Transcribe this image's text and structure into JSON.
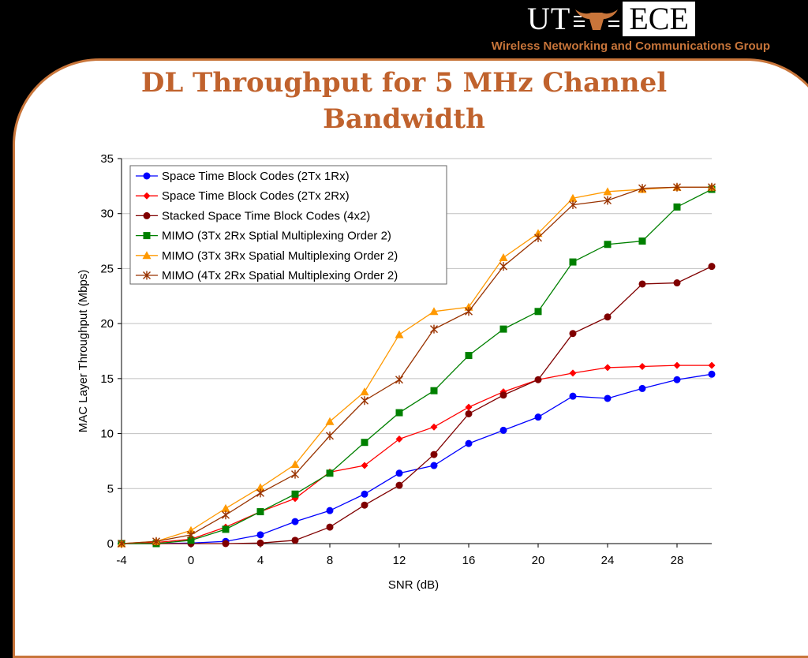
{
  "header": {
    "logo_left": "UT",
    "logo_right": "ECE",
    "group_name": "Wireless Networking and Communications Group"
  },
  "slide": {
    "title_line1": "DL Throughput for 5 MHz Channel",
    "title_line2": "Bandwidth"
  },
  "chart_data": {
    "type": "line",
    "title": "",
    "xlabel": "SNR (dB)",
    "ylabel": "MAC Layer Throughput (Mbps)",
    "xlim": [
      -4,
      30
    ],
    "ylim": [
      0,
      35
    ],
    "xticks": [
      -4,
      0,
      4,
      8,
      12,
      16,
      20,
      24,
      28
    ],
    "yticks": [
      0,
      5,
      10,
      15,
      20,
      25,
      30,
      35
    ],
    "grid": "horizontal",
    "legend_position": "top-left",
    "x": [
      -4,
      -2,
      0,
      2,
      4,
      6,
      8,
      10,
      12,
      14,
      16,
      18,
      20,
      22,
      24,
      26,
      28,
      30
    ],
    "series": [
      {
        "name": "Space Time Block Codes (2Tx 1Rx)",
        "color": "#0000ff",
        "marker": "circle",
        "values": [
          0,
          0,
          0.05,
          0.2,
          0.8,
          2.0,
          3.0,
          4.5,
          6.4,
          7.1,
          9.1,
          10.3,
          11.5,
          13.4,
          13.2,
          14.1,
          14.9,
          15.4
        ]
      },
      {
        "name": "Space Time Block Codes (2Tx 2Rx)",
        "color": "#ff0000",
        "marker": "diamond",
        "values": [
          0,
          0.1,
          0.4,
          1.5,
          2.9,
          4.1,
          6.5,
          7.1,
          9.5,
          10.6,
          12.4,
          13.8,
          14.9,
          15.5,
          16.0,
          16.1,
          16.2,
          16.2
        ]
      },
      {
        "name": "Stacked Space Time Block Codes (4x2)",
        "color": "#800000",
        "marker": "circle",
        "values": [
          0,
          0,
          0,
          0,
          0.05,
          0.3,
          1.5,
          3.5,
          5.3,
          8.1,
          11.8,
          13.5,
          14.9,
          19.1,
          20.6,
          23.6,
          23.7,
          25.2
        ]
      },
      {
        "name": "MIMO (3Tx 2Rx Sptial Multiplexing Order 2)",
        "color": "#008000",
        "marker": "square",
        "values": [
          0,
          0,
          0.3,
          1.3,
          2.9,
          4.5,
          6.4,
          9.2,
          11.9,
          13.9,
          17.1,
          19.5,
          21.1,
          25.6,
          27.2,
          27.5,
          30.6,
          32.2
        ]
      },
      {
        "name": "MIMO (3Tx 3Rx Spatial Multiplexing Order 2)",
        "color": "#ff9900",
        "marker": "triangle",
        "values": [
          0,
          0.2,
          1.2,
          3.2,
          5.1,
          7.2,
          11.1,
          13.8,
          19.0,
          21.1,
          21.5,
          26.0,
          28.2,
          31.4,
          32.0,
          32.2,
          32.4,
          32.4
        ]
      },
      {
        "name": "MIMO (4Tx 2Rx Spatial Multiplexing Order 2)",
        "color": "#993300",
        "marker": "star",
        "values": [
          0,
          0.2,
          0.8,
          2.6,
          4.6,
          6.3,
          9.8,
          13.0,
          14.9,
          19.5,
          21.1,
          25.2,
          27.8,
          30.8,
          31.2,
          32.3,
          32.4,
          32.4
        ]
      }
    ]
  }
}
